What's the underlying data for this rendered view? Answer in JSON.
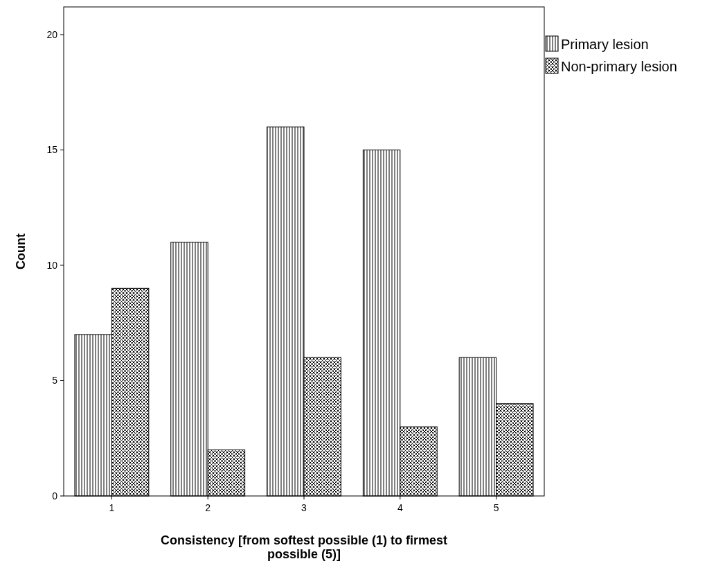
{
  "chart_data": {
    "type": "bar",
    "xlabel": "Consistency [from softest possible (1) to firmest possible (5)]",
    "ylabel": "Count",
    "categories": [
      "1",
      "2",
      "3",
      "4",
      "5"
    ],
    "series": [
      {
        "name": "Primary lesion",
        "color": "#000000",
        "values": [
          7,
          11,
          16,
          15,
          6
        ]
      },
      {
        "name": "Non-primary lesion",
        "color": "#000000",
        "values": [
          9,
          2,
          6,
          3,
          4
        ]
      }
    ],
    "ylim": [
      0,
      21.2
    ],
    "yticks": [
      0,
      5,
      10,
      15,
      20
    ],
    "grid": false,
    "legend": "top right"
  }
}
